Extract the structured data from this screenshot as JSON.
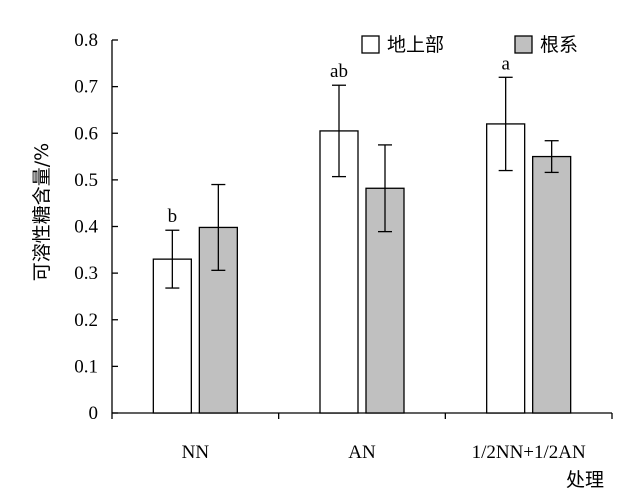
{
  "chart_data": {
    "type": "bar",
    "categories": [
      "NN",
      "AN",
      "1/2NN+1/2AN"
    ],
    "xlabel": "处理",
    "ylabel": "可溶性糖含量/%",
    "ylim": [
      0,
      0.8
    ],
    "yticks": [
      "0",
      "0.1",
      "0.2",
      "0.3",
      "0.4",
      "0.5",
      "0.6",
      "0.7",
      "0.8"
    ],
    "grid": false,
    "legend_position": "top-right",
    "series": [
      {
        "name": "地上部",
        "color": "#ffffff",
        "values": [
          0.33,
          0.605,
          0.62
        ],
        "errors": [
          0.062,
          0.098,
          0.1
        ],
        "significance": [
          "b",
          "ab",
          "a"
        ]
      },
      {
        "name": "根系",
        "color": "#c0c0c0",
        "values": [
          0.398,
          0.482,
          0.55
        ],
        "errors": [
          0.092,
          0.093,
          0.034
        ],
        "significance": [
          "",
          "",
          ""
        ]
      }
    ]
  }
}
